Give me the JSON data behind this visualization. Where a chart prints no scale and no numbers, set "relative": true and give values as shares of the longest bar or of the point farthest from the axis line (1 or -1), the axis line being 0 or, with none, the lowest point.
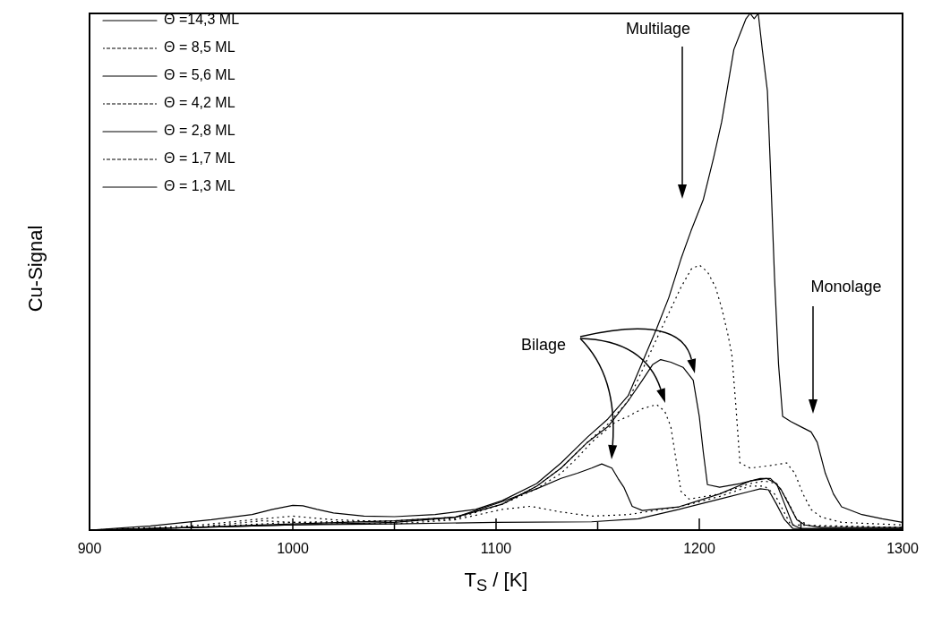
{
  "chart_data": {
    "type": "line",
    "relative": true,
    "xlabel": "T$_{S}$ / [K]",
    "ylabel": "Cu-Signal",
    "xlim": [
      900,
      1300
    ],
    "xticks": [
      900,
      {
        "value": 950,
        "label": null
      },
      1000,
      {
        "value": 1050,
        "label": null
      },
      1100,
      {
        "value": 1150,
        "label": null
      },
      1200,
      {
        "value": 1250,
        "label": null
      },
      1300
    ],
    "grid": false,
    "legend": "top left",
    "marker": "none",
    "series": [
      {
        "name": "Θ =14,3 ML",
        "color": "#000000",
        "line_style": "solid",
        "x": [
          900,
          930,
          960,
          980,
          990,
          1000,
          1005,
          1012,
          1020,
          1035,
          1050,
          1070,
          1090,
          1103,
          1120,
          1132,
          1145,
          1155,
          1165,
          1172,
          1179,
          1185,
          1191,
          1196,
          1202,
          1207,
          1211,
          1214,
          1217,
          1220,
          1223,
          1225,
          1227,
          1229,
          1231,
          1233.5,
          1235,
          1237,
          1239,
          1241,
          1245,
          1250,
          1255,
          1258,
          1262,
          1266,
          1270,
          1280,
          1290,
          1300
        ],
        "values": [
          0,
          0.008,
          0.02,
          0.03,
          0.04,
          0.048,
          0.047,
          0.04,
          0.033,
          0.027,
          0.026,
          0.03,
          0.04,
          0.057,
          0.09,
          0.13,
          0.18,
          0.215,
          0.26,
          0.325,
          0.39,
          0.45,
          0.525,
          0.58,
          0.64,
          0.72,
          0.79,
          0.86,
          0.93,
          0.96,
          0.99,
          1.0,
          0.99,
          1.0,
          0.93,
          0.85,
          0.7,
          0.49,
          0.32,
          0.22,
          0.21,
          0.2,
          0.19,
          0.17,
          0.11,
          0.07,
          0.045,
          0.03,
          0.022,
          0.015
        ]
      },
      {
        "name": "Θ = 8,5 ML",
        "color": "#000000",
        "line_style": "dotted",
        "x": [
          900,
          950,
          980,
          1000,
          1020,
          1050,
          1080,
          1103,
          1120,
          1132,
          1145,
          1155,
          1165,
          1172,
          1179,
          1185,
          1191,
          1196,
          1200,
          1204,
          1208,
          1211,
          1214,
          1216,
          1218,
          1220,
          1225,
          1235,
          1243,
          1247,
          1251,
          1255,
          1260,
          1270,
          1300
        ],
        "values": [
          0,
          0.008,
          0.02,
          0.027,
          0.02,
          0.016,
          0.022,
          0.05,
          0.085,
          0.12,
          0.17,
          0.205,
          0.25,
          0.31,
          0.37,
          0.42,
          0.47,
          0.505,
          0.513,
          0.5,
          0.47,
          0.43,
          0.38,
          0.34,
          0.24,
          0.13,
          0.12,
          0.125,
          0.13,
          0.11,
          0.07,
          0.04,
          0.025,
          0.015,
          0.01
        ]
      },
      {
        "name": "Θ = 5,6 ML",
        "color": "#000000",
        "line_style": "solid",
        "x": [
          900,
          950,
          1000,
          1050,
          1080,
          1103,
          1120,
          1132,
          1145,
          1155,
          1165,
          1172,
          1177,
          1181,
          1186,
          1192,
          1197,
          1200,
          1202,
          1204,
          1210,
          1220,
          1230,
          1235,
          1240,
          1244,
          1248,
          1252,
          1260,
          1300
        ],
        "values": [
          0,
          0.005,
          0.012,
          0.018,
          0.025,
          0.05,
          0.085,
          0.12,
          0.17,
          0.2,
          0.25,
          0.29,
          0.32,
          0.33,
          0.325,
          0.315,
          0.29,
          0.22,
          0.15,
          0.088,
          0.083,
          0.09,
          0.1,
          0.1,
          0.08,
          0.05,
          0.02,
          0.01,
          0.005,
          0.005
        ]
      },
      {
        "name": "Θ = 4,2 ML",
        "color": "#000000",
        "line_style": "dotted",
        "x": [
          900,
          950,
          1000,
          1050,
          1080,
          1103,
          1120,
          1132,
          1140,
          1147,
          1153,
          1159,
          1165,
          1172,
          1179,
          1183,
          1186,
          1188,
          1191,
          1195,
          1210,
          1225,
          1232,
          1238,
          1243,
          1248,
          1255,
          1300
        ],
        "values": [
          0,
          0.005,
          0.015,
          0.018,
          0.025,
          0.05,
          0.08,
          0.11,
          0.14,
          0.17,
          0.19,
          0.21,
          0.22,
          0.235,
          0.243,
          0.23,
          0.2,
          0.15,
          0.075,
          0.06,
          0.07,
          0.09,
          0.095,
          0.09,
          0.06,
          0.02,
          0.008,
          0.005
        ]
      },
      {
        "name": "Θ = 2,8 ML",
        "color": "#000000",
        "line_style": "solid",
        "x": [
          900,
          950,
          1000,
          1050,
          1080,
          1103,
          1120,
          1132,
          1140,
          1147,
          1152,
          1157,
          1160,
          1163,
          1167,
          1172,
          1190,
          1210,
          1225,
          1233,
          1238,
          1242,
          1246,
          1250,
          1300
        ],
        "values": [
          0,
          0.005,
          0.01,
          0.015,
          0.025,
          0.055,
          0.08,
          0.1,
          0.11,
          0.12,
          0.128,
          0.12,
          0.1,
          0.082,
          0.046,
          0.038,
          0.045,
          0.07,
          0.095,
          0.1,
          0.09,
          0.05,
          0.01,
          0.003,
          0.003
        ]
      },
      {
        "name": "Θ = 1,7 ML",
        "color": "#000000",
        "line_style": "dotted",
        "x": [
          900,
          950,
          985,
          1000,
          1050,
          1080,
          1103,
          1117,
          1132,
          1147,
          1165,
          1190,
          1210,
          1225,
          1232,
          1237,
          1241,
          1245,
          1300
        ],
        "values": [
          0,
          0.005,
          0.018,
          0.015,
          0.012,
          0.02,
          0.04,
          0.046,
          0.035,
          0.027,
          0.03,
          0.045,
          0.065,
          0.085,
          0.085,
          0.07,
          0.04,
          0.01,
          0.005
        ]
      },
      {
        "name": "Θ = 1,3 ML",
        "color": "#000000",
        "line_style": "solid",
        "x": [
          900,
          950,
          1000,
          1050,
          1100,
          1147,
          1170,
          1190,
          1210,
          1225,
          1230,
          1234,
          1238,
          1242,
          1246,
          1300
        ],
        "values": [
          0,
          0.005,
          0.01,
          0.012,
          0.015,
          0.016,
          0.022,
          0.04,
          0.06,
          0.075,
          0.08,
          0.078,
          0.05,
          0.02,
          0.003,
          0.003
        ]
      }
    ],
    "annotations": [
      "Multilage",
      "Bilage",
      "Monolage"
    ]
  }
}
